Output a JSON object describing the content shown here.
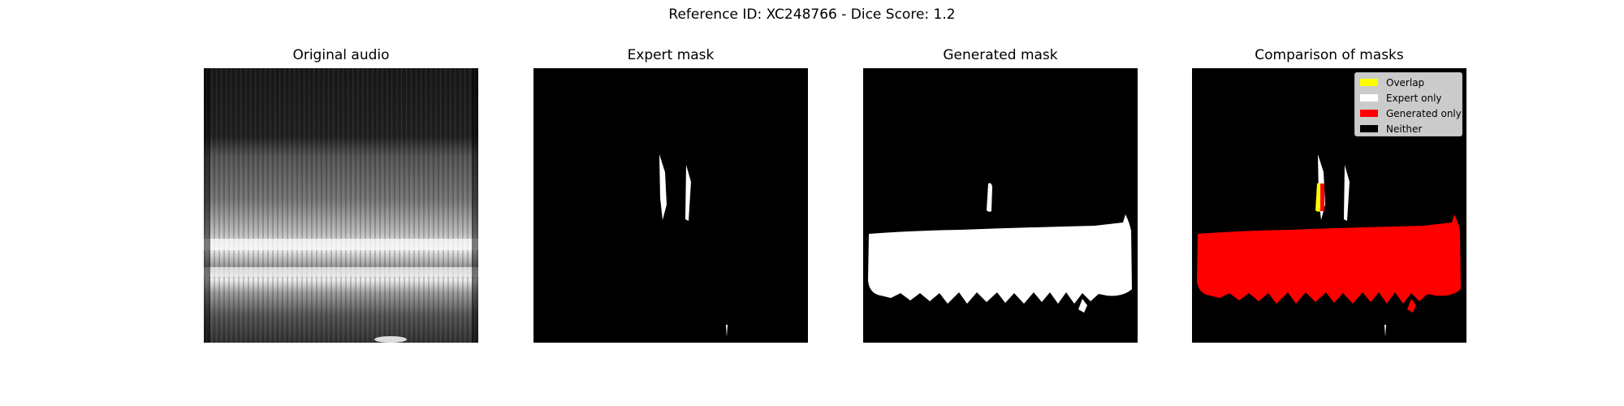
{
  "title": "Reference ID: XC248766 - Dice Score: 1.2",
  "panels": [
    {
      "title": "Original audio"
    },
    {
      "title": "Expert mask"
    },
    {
      "title": "Generated mask"
    },
    {
      "title": "Comparison of masks"
    }
  ],
  "legend": [
    {
      "label": "Overlap",
      "color": "#ffff00"
    },
    {
      "label": "Expert only",
      "color": "#ffffff"
    },
    {
      "label": "Generated only",
      "color": "#ff0000"
    },
    {
      "label": "Neither",
      "color": "#000000"
    }
  ]
}
